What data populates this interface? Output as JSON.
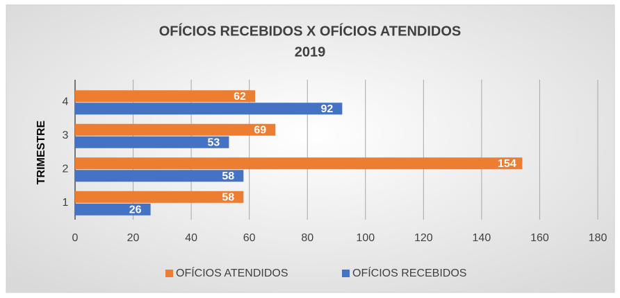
{
  "chart_data": {
    "type": "hbar",
    "title": "OFÍCIOS RECEBIDOS X OFÍCIOS ATENDIDOS",
    "subtitle": "2019",
    "y_label": "TRIMESTRE",
    "categories": [
      "1",
      "2",
      "3",
      "4"
    ],
    "series": [
      {
        "name": "OFÍCIOS ATENDIDOS",
        "color": "#ed7d31",
        "values": [
          58,
          154,
          69,
          62
        ]
      },
      {
        "name": "OFÍCIOS RECEBIDOS",
        "color": "#4472c4",
        "values": [
          26,
          58,
          53,
          92
        ]
      }
    ],
    "xlim": [
      0,
      180
    ],
    "xticks": [
      0,
      20,
      40,
      60,
      80,
      100,
      120,
      140,
      160,
      180
    ],
    "grid": true,
    "legend": "bottom"
  }
}
